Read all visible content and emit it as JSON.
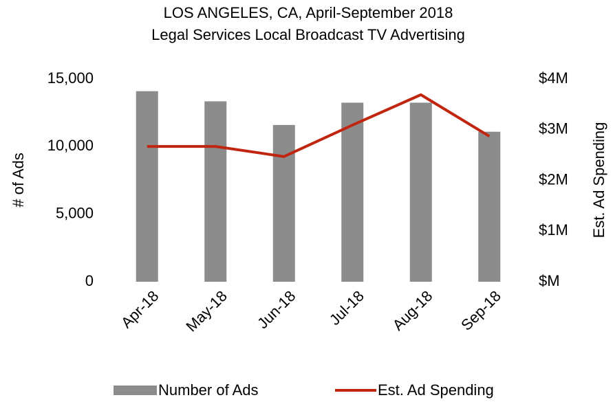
{
  "chart_data": {
    "type": "bar_line",
    "title": "LOS ANGELES, CA, April-September 2018",
    "subtitle": "Legal Services Local Broadcast TV Advertising",
    "y_label": "# of Ads",
    "y2_label": "Est. Ad Spending",
    "categories": [
      "Apr-18",
      "May-18",
      "Jun-18",
      "Jul-18",
      "Aug-18",
      "Sep-18"
    ],
    "series": [
      {
        "name": "Number of Ads",
        "type": "bar",
        "color": "#8c8c8c",
        "values": [
          14100,
          13350,
          11600,
          13250,
          13250,
          11100
        ]
      },
      {
        "name": "Est. Ad Spending",
        "type": "line",
        "axis": "y2",
        "color": "#c0260f",
        "values": [
          2670000,
          2670000,
          2470000,
          3090000,
          3690000,
          2870000
        ]
      }
    ],
    "ylim": [
      0,
      15000
    ],
    "yticks": [
      0,
      {
        "value": 5000,
        "label": "5,000"
      },
      {
        "value": 10000,
        "label": "10,000"
      },
      {
        "value": 15000,
        "label": "15,000"
      }
    ],
    "y2lim": [
      0,
      4000000
    ],
    "y2ticks": [
      {
        "value": 0,
        "label": "$M"
      },
      {
        "value": 1000000,
        "label": "$1M"
      },
      {
        "value": 2000000,
        "label": "$2M"
      },
      {
        "value": 3000000,
        "label": "$3M"
      },
      {
        "value": 4000000,
        "label": "$4M"
      }
    ],
    "legend": "bottom"
  }
}
